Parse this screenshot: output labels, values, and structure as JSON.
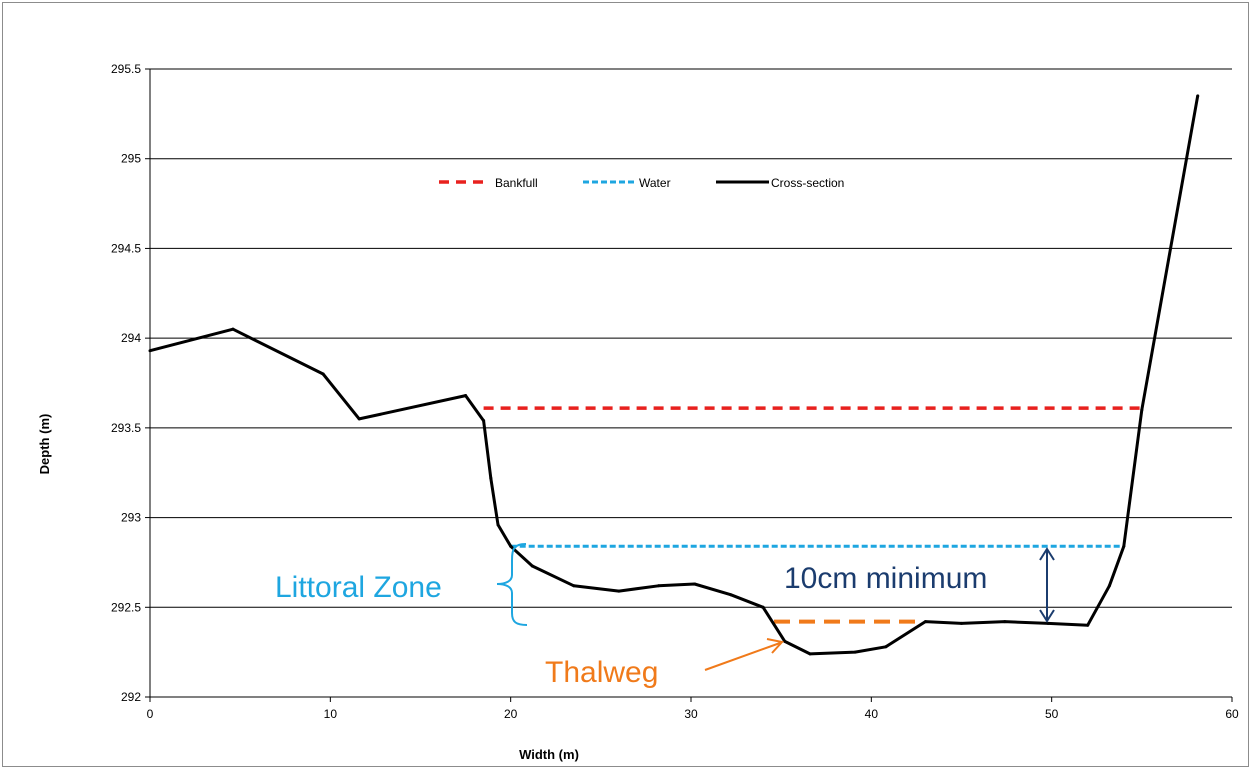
{
  "chart_data": {
    "type": "line",
    "xlabel": "Width (m)",
    "ylabel": "Depth (m)",
    "xlim": [
      0,
      60
    ],
    "ylim": [
      292,
      295.5
    ],
    "x_ticks": [
      "0",
      "10",
      "20",
      "30",
      "40",
      "50",
      "60"
    ],
    "y_ticks": [
      "292",
      "292.5",
      "293",
      "293.5",
      "294",
      "294.5",
      "295",
      "295.5"
    ],
    "grid": "horizontal",
    "legend_position": "top-center",
    "series": [
      {
        "name": "Bankfull",
        "style": "dashed",
        "color": "#e8211e",
        "x": [
          18.5,
          55
        ],
        "y": [
          293.61,
          293.61
        ]
      },
      {
        "name": "Water",
        "style": "dashed",
        "color": "#1ea6e0",
        "x": [
          20,
          54
        ],
        "y": [
          292.84,
          292.84
        ]
      },
      {
        "name": "Cross-section",
        "style": "solid",
        "color": "#000000",
        "x": [
          0,
          4.6,
          9.6,
          11.6,
          17.5,
          18.5,
          18.9,
          19.3,
          20.0,
          21.2,
          23.5,
          26.0,
          28.2,
          30.2,
          32.2,
          34.0,
          35.2,
          36.6,
          39.1,
          40.8,
          43.0,
          45.0,
          47.4,
          49.8,
          52.0,
          53.2,
          54.0,
          55.0,
          58.1
        ],
        "y": [
          293.93,
          294.05,
          293.8,
          293.55,
          293.68,
          293.54,
          293.22,
          292.96,
          292.84,
          292.73,
          292.62,
          292.59,
          292.62,
          292.63,
          292.57,
          292.5,
          292.31,
          292.24,
          292.25,
          292.28,
          292.42,
          292.41,
          292.42,
          292.41,
          292.4,
          292.62,
          292.84,
          293.6,
          295.35
        ]
      }
    ],
    "thalweg_line": {
      "x": [
        34.6,
        42.9
      ],
      "y": [
        292.42,
        292.42
      ],
      "color": "#f07a1a"
    },
    "annotations": {
      "littoral_zone": "Littoral Zone",
      "ten_cm_minimum": "10cm minimum",
      "thalweg": "Thalweg"
    },
    "colors": {
      "littoral": "#1ea6e0",
      "min_label": "#1b3c6e",
      "thalweg": "#f07a1a",
      "grid": "#000000"
    }
  }
}
